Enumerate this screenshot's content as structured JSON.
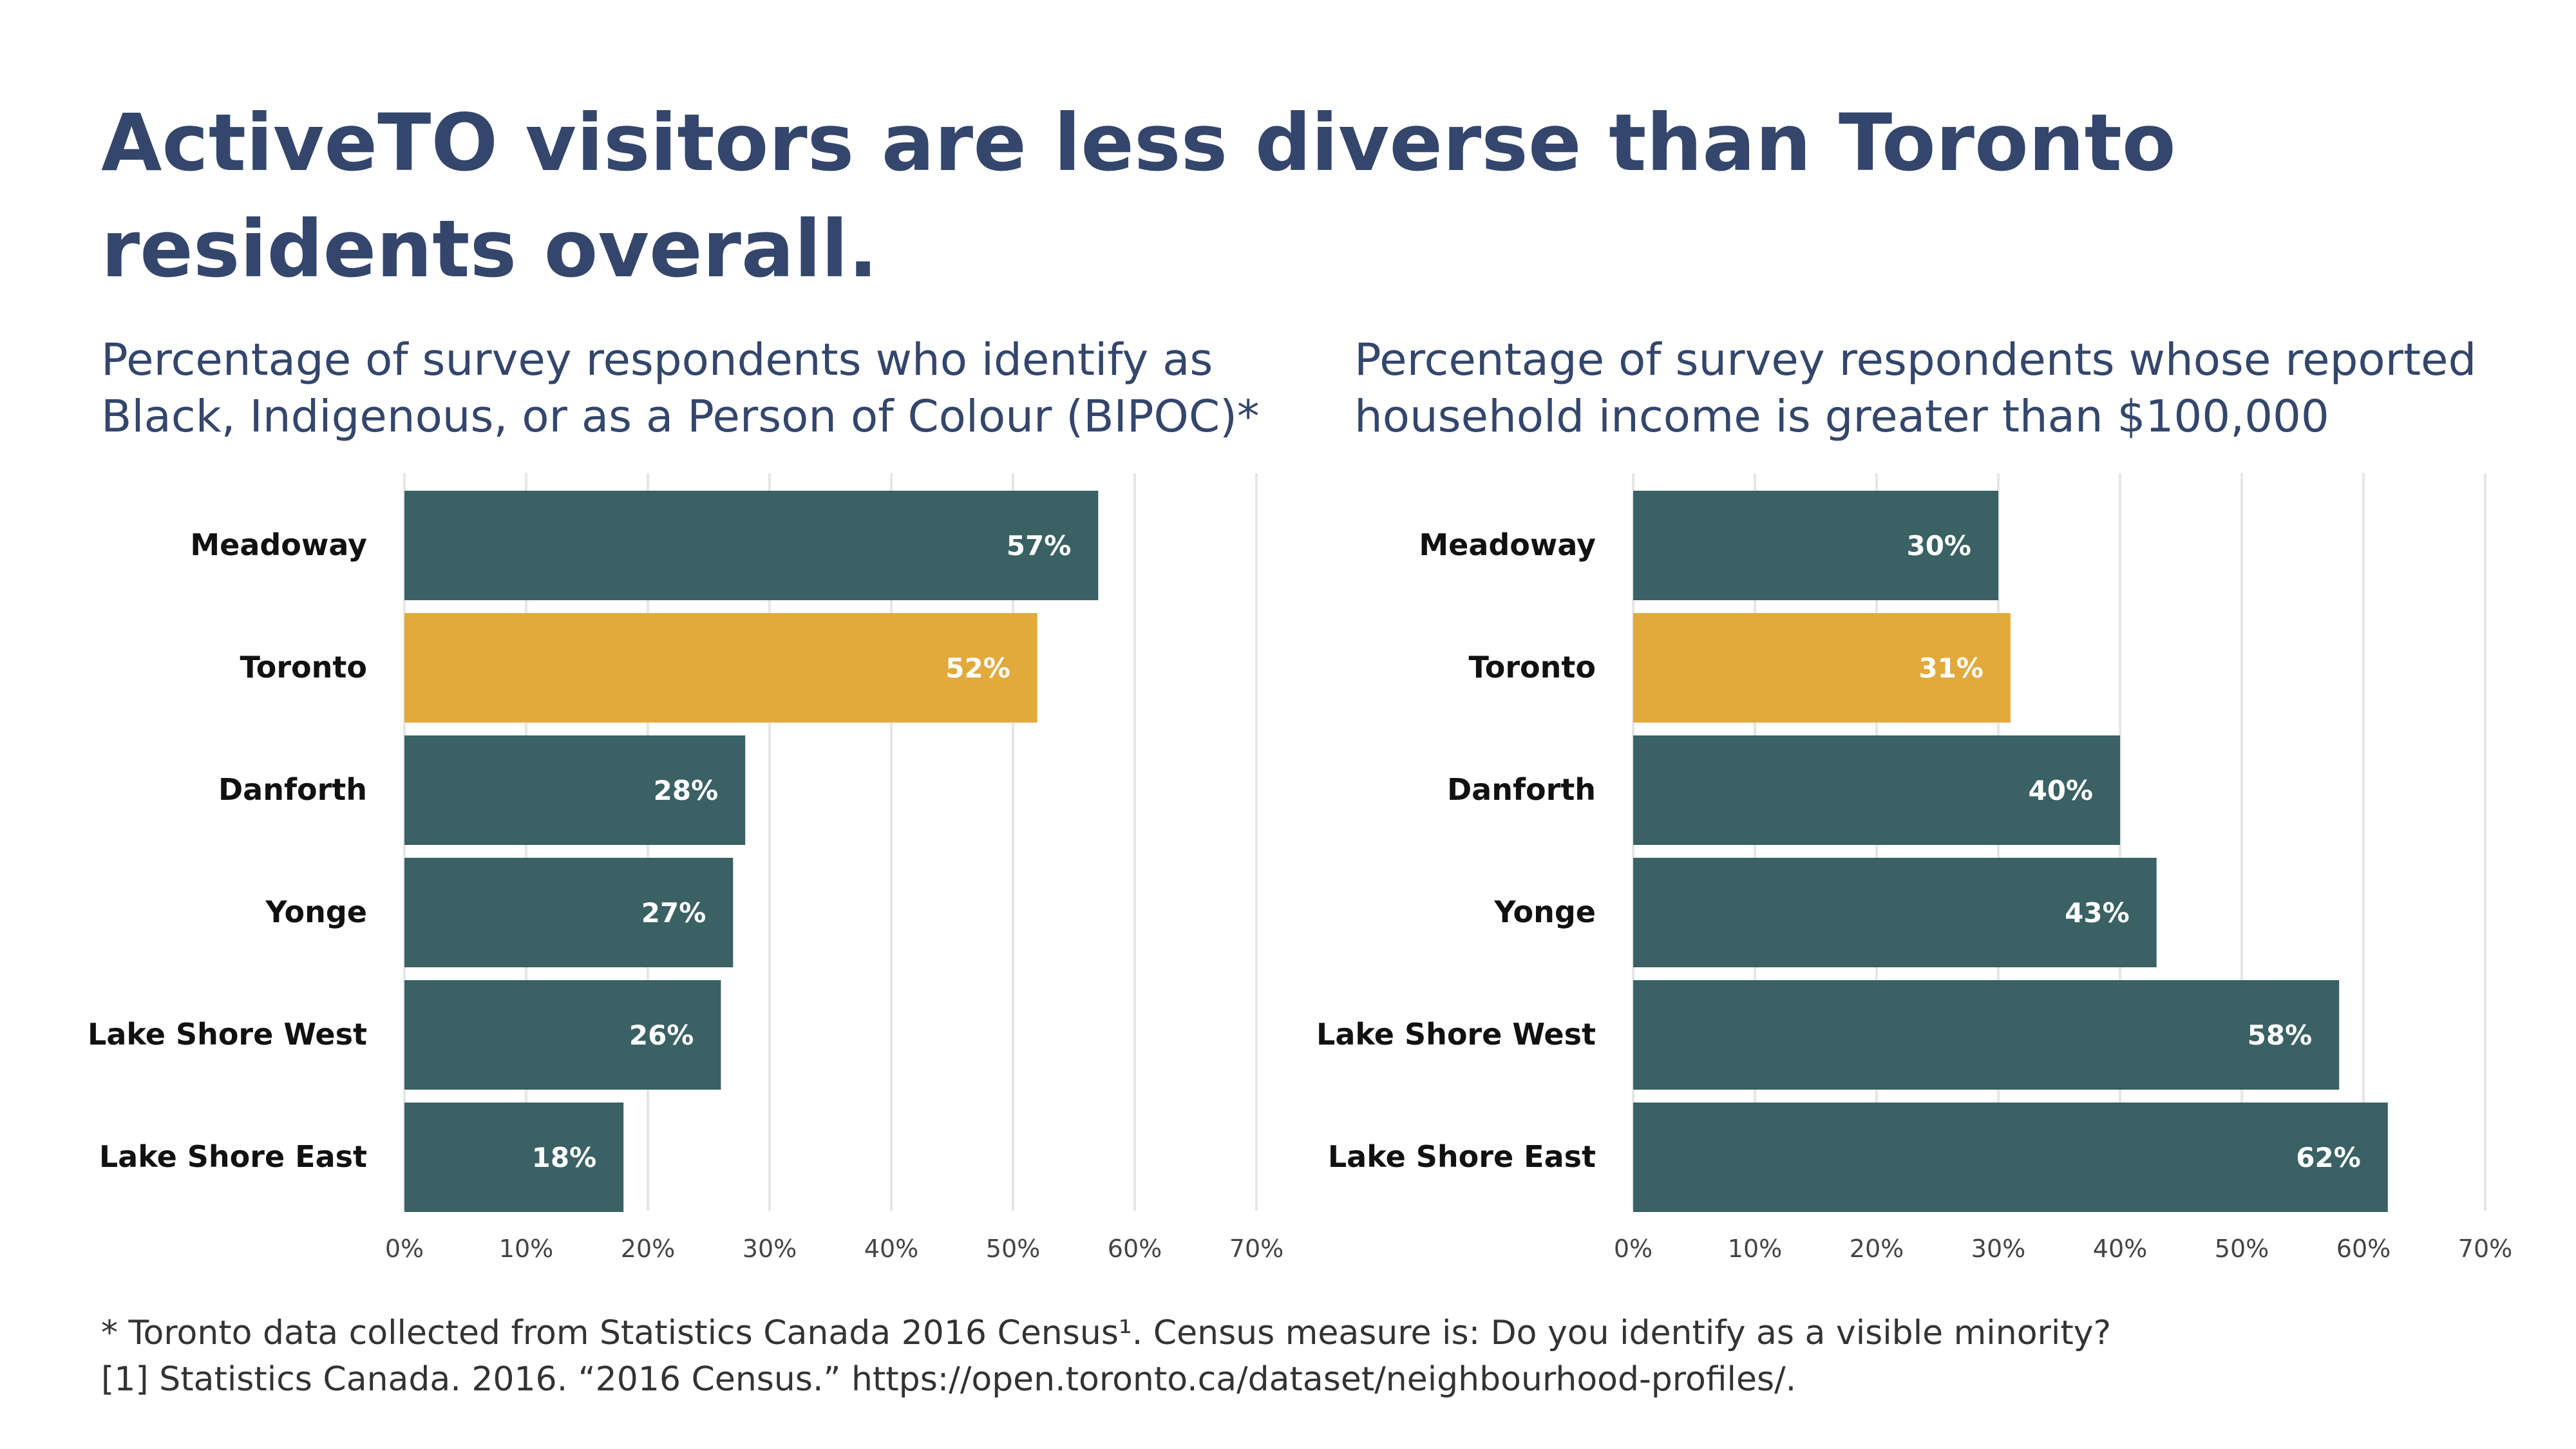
{
  "title": "ActiveTO visitors are less diverse than Toronto residents overall.",
  "subtitles": {
    "left": "Percentage of survey respondents who identify as Black, Indigenous, or as a Person of Colour (BIPOC)*",
    "right": "Percentage of survey respondents whose reported household income is greater than $100,000"
  },
  "footnotes": {
    "line1": "* Toronto data collected from Statistics Canada 2016 Census¹. Census measure is: Do you identify as a visible minority?",
    "line2": "[1] Statistics Canada. 2016. “2016 Census.” https://open.toronto.ca/dataset/neighbourhood-profiles/."
  },
  "colors": {
    "bar": "#3a6163",
    "highlight": "#e2aa3c",
    "grid": "#e6e6e6",
    "title": "#34466b"
  },
  "chart_data": [
    {
      "type": "bar",
      "orientation": "horizontal",
      "title": "Percentage of survey respondents who identify as Black, Indigenous, or as a Person of Colour (BIPOC)*",
      "categories": [
        "Meadoway",
        "Toronto",
        "Danforth",
        "Yonge",
        "Lake Shore West",
        "Lake Shore East"
      ],
      "values": [
        57,
        52,
        28,
        27,
        26,
        18
      ],
      "value_labels": [
        "57%",
        "52%",
        "28%",
        "27%",
        "26%",
        "18%"
      ],
      "highlight": "Toronto",
      "xlim": [
        0,
        70
      ],
      "xticks": [
        0,
        10,
        20,
        30,
        40,
        50,
        60,
        70
      ],
      "xtick_labels": [
        "0%",
        "10%",
        "20%",
        "30%",
        "40%",
        "50%",
        "60%",
        "70%"
      ],
      "grid": true
    },
    {
      "type": "bar",
      "orientation": "horizontal",
      "title": "Percentage of survey respondents whose reported household income is greater than $100,000",
      "categories": [
        "Meadoway",
        "Toronto",
        "Danforth",
        "Yonge",
        "Lake Shore West",
        "Lake Shore East"
      ],
      "values": [
        30,
        31,
        40,
        43,
        58,
        62
      ],
      "value_labels": [
        "30%",
        "31%",
        "40%",
        "43%",
        "58%",
        "62%"
      ],
      "highlight": "Toronto",
      "xlim": [
        0,
        70
      ],
      "xticks": [
        0,
        10,
        20,
        30,
        40,
        50,
        60,
        70
      ],
      "xtick_labels": [
        "0%",
        "10%",
        "20%",
        "30%",
        "40%",
        "50%",
        "60%",
        "70%"
      ],
      "grid": true
    }
  ]
}
